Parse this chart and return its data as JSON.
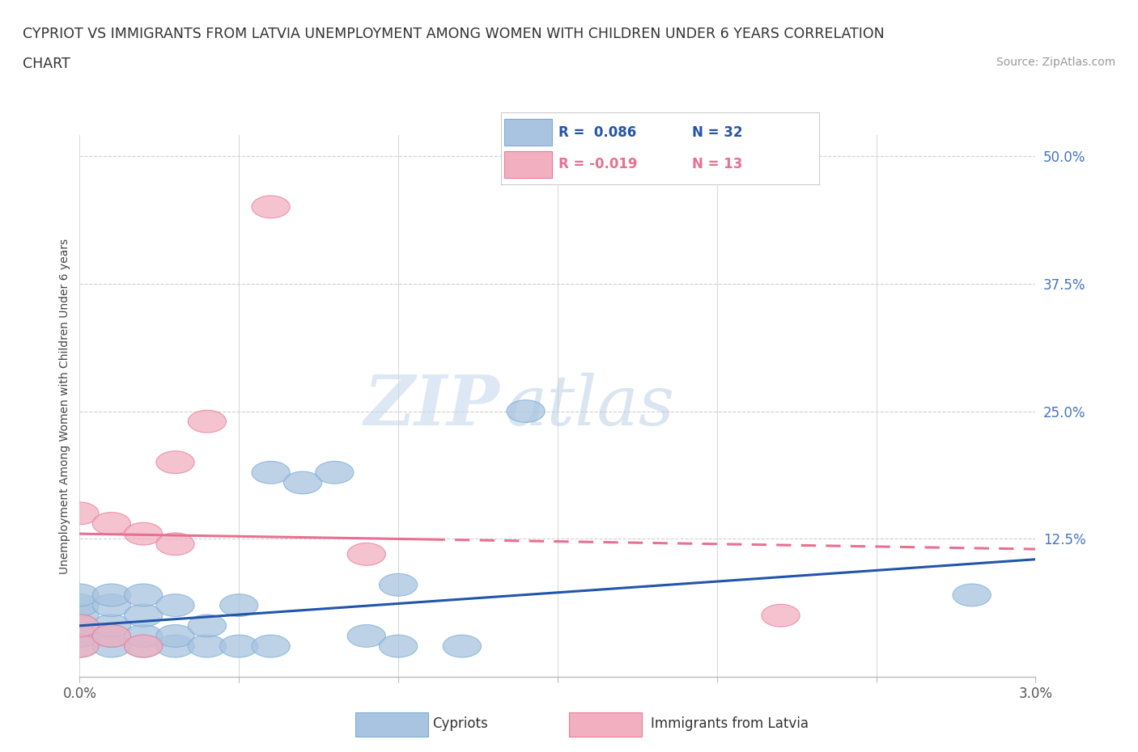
{
  "title_line1": "CYPRIOT VS IMMIGRANTS FROM LATVIA UNEMPLOYMENT AMONG WOMEN WITH CHILDREN UNDER 6 YEARS CORRELATION",
  "title_line2": "CHART",
  "source": "Source: ZipAtlas.com",
  "ylabel": "Unemployment Among Women with Children Under 6 years",
  "xlim": [
    0.0,
    0.03
  ],
  "ylim": [
    -0.01,
    0.52
  ],
  "xticks": [
    0.0,
    0.005,
    0.01,
    0.015,
    0.02,
    0.025,
    0.03
  ],
  "xticklabels": [
    "0.0%",
    "",
    "",
    "",
    "",
    "",
    "3.0%"
  ],
  "yticks": [
    0.0,
    0.125,
    0.25,
    0.375,
    0.5
  ],
  "yticklabels": [
    "",
    "12.5%",
    "25.0%",
    "37.5%",
    "50.0%"
  ],
  "grid_color": "#d0d0d0",
  "background_color": "#ffffff",
  "cypriot_color": "#a8c4e0",
  "latvia_color": "#f2afc0",
  "cypriot_edge_color": "#7aadd4",
  "latvia_edge_color": "#e87a9a",
  "cypriot_line_color": "#2255aa",
  "latvia_line_color": "#e87090",
  "legend_R_cypriot": "R =  0.086",
  "legend_N_cypriot": "N = 32",
  "legend_R_latvia": "R = -0.019",
  "legend_N_latvia": "N = 13",
  "watermark_zip": "ZIP",
  "watermark_atlas": "atlas",
  "cypriot_x": [
    0.0,
    0.0,
    0.0,
    0.0,
    0.0,
    0.0,
    0.001,
    0.001,
    0.001,
    0.001,
    0.001,
    0.002,
    0.002,
    0.002,
    0.002,
    0.003,
    0.003,
    0.003,
    0.004,
    0.004,
    0.005,
    0.005,
    0.006,
    0.006,
    0.007,
    0.008,
    0.009,
    0.01,
    0.01,
    0.012,
    0.014,
    0.028
  ],
  "cypriot_y": [
    0.02,
    0.03,
    0.04,
    0.05,
    0.06,
    0.07,
    0.02,
    0.03,
    0.04,
    0.06,
    0.07,
    0.02,
    0.03,
    0.05,
    0.07,
    0.02,
    0.03,
    0.06,
    0.02,
    0.04,
    0.02,
    0.06,
    0.02,
    0.19,
    0.18,
    0.19,
    0.03,
    0.02,
    0.08,
    0.02,
    0.25,
    0.07
  ],
  "latvia_x": [
    0.0,
    0.0,
    0.0,
    0.001,
    0.001,
    0.002,
    0.002,
    0.003,
    0.003,
    0.004,
    0.006,
    0.009,
    0.022
  ],
  "latvia_y": [
    0.02,
    0.04,
    0.15,
    0.03,
    0.14,
    0.02,
    0.13,
    0.12,
    0.2,
    0.24,
    0.45,
    0.11,
    0.05
  ],
  "cypriot_trend_x": [
    0.0,
    0.03
  ],
  "cypriot_trend_y": [
    0.04,
    0.105
  ],
  "latvia_trend_x": [
    0.0,
    0.03
  ],
  "latvia_trend_y": [
    0.13,
    0.115
  ]
}
